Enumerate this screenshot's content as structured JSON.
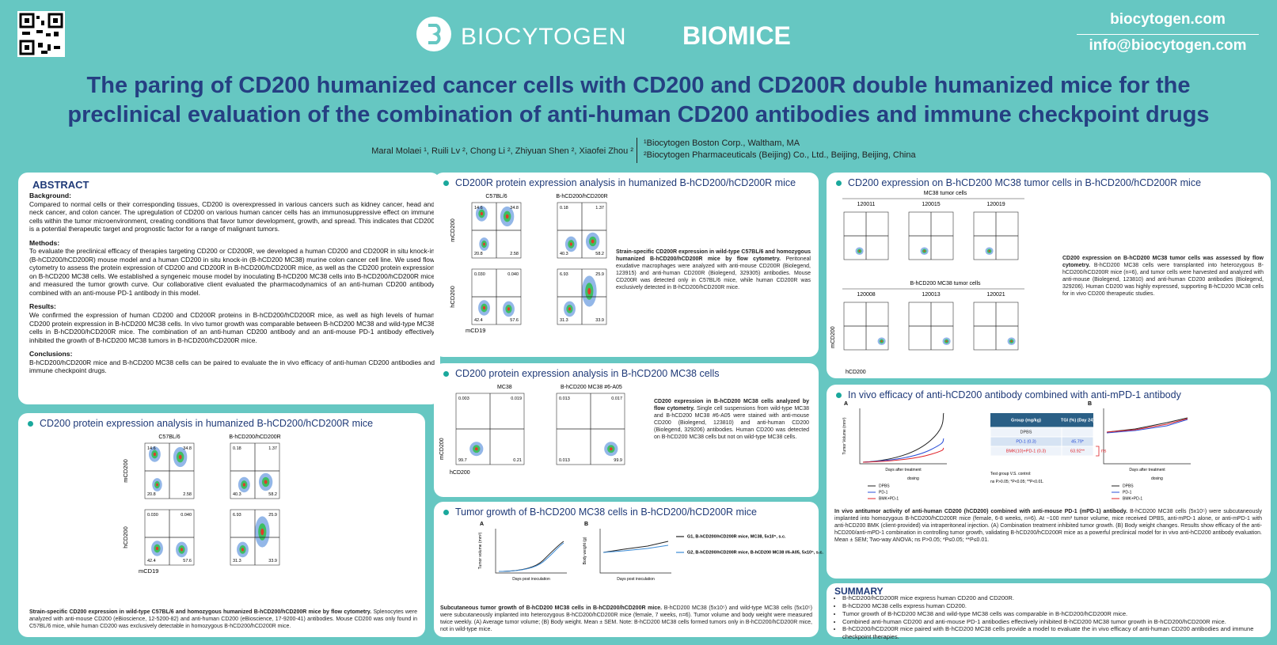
{
  "header": {
    "brand1": "BIOCYTOGEN",
    "brand2": "BIOMICE",
    "website": "biocytogen.com",
    "email": "info@biocytogen.com"
  },
  "title": {
    "line1": "The paring of CD200 humanized cancer cells with CD200 and CD200R double humanized mice for the",
    "line2": "preclinical evaluation of the combination of anti-human CD200 antibodies and immune checkpoint drugs"
  },
  "authors": "Maral Molaei ¹, Ruili Lv ², Chong Li ², Zhiyuan Shen ², Xiaofei Zhou ²",
  "affiliations": [
    "¹Biocytogen Boston Corp., Waltham, MA",
    "²Biocytogen Pharmaceuticals (Beijing) Co., Ltd., Beijing, Beijing, China"
  ],
  "abstract": {
    "heading": "ABSTRACT",
    "sections": [
      {
        "heading": "Background:",
        "text": "Compared to normal cells or their corresponding tissues, CD200 is overexpressed in various cancers such as kidney cancer, head and neck cancer, and colon cancer. The upregulation of CD200 on various human cancer cells has an immunosuppressive effect on immune cells within the tumor microenvironment, creating conditions that favor tumor development, growth, and spread. This indicates that CD200 is a potential therapeutic target and prognostic factor for a range of malignant tumors."
      },
      {
        "heading": "Methods:",
        "text": "To evaluate the preclinical efficacy of therapies targeting CD200 or CD200R, we developed a human CD200 and CD200R in situ knock-in (B-hCD200/hCD200R) mouse model and a human CD200 in situ knock-in (B-hCD200 MC38) murine colon cancer cell line. We used flow cytometry to assess the protein expression of CD200 and CD200R in B-hCD200/hCD200R mice, as well as the CD200 protein expression on B-hCD200 MC38 cells. We established a syngeneic mouse model by inoculating B-hCD200 MC38 cells into B-hCD200/hCD200R mice and measured the tumor growth curve. Our collaborative client evaluated the pharmacodynamics of an anti-human CD200 antibody combined with an anti-mouse PD-1 antibody in this model."
      },
      {
        "heading": "Results:",
        "text": "We confirmed the expression of human CD200 and CD200R proteins in B-hCD200/hCD200R mice, as well as high levels of human CD200 protein expression in B-hCD200 MC38 cells. In vivo tumor growth was comparable between B-hCD200 MC38 and wild-type MC38 cells in B-hCD200/hCD200R mice. The combination of an anti-human CD200 antibody and an anti-mouse PD-1 antibody effectively inhibited the growth of B-hCD200 MC38 tumors in B-hCD200/hCD200R mice."
      },
      {
        "heading": "Conclusions:",
        "text": "B-hCD200/hCD200R mice and B-hCD200 MC38 cells can be paired to evaluate the in vivo efficacy of anti-human CD200 antibodies and immune checkpoint drugs."
      }
    ]
  },
  "cd200_panel": {
    "title": "CD200 protein expression analysis in humanized B-hCD200/hCD200R mice",
    "columns": [
      "C57BL/6",
      "B-hCD200/hCD200R"
    ],
    "rows": [
      "mCD200",
      "hCD200"
    ],
    "xaxis": "mCD19",
    "quads": [
      [
        "14.6",
        "34.8",
        "20.8",
        "2.58"
      ],
      [
        "0.18",
        "1.37",
        "40.3",
        "58.2"
      ],
      [
        "0.030",
        "0.040",
        "42.4",
        "57.6"
      ],
      [
        "6.93",
        "25.9",
        "31.3",
        "33.9"
      ]
    ],
    "caption_bold": "Strain-specific CD200 expression in wild-type C57BL/6 and homozygous humanized B-hCD200/hCD200R mice by flow cytometry.",
    "caption": "Splenocytes were analyzed with anti-mouse CD200 (eBioscience, 12-5200-82) and anti-human CD200 (eBioscience, 17-9200-41) antibodies. Mouse CD200 was only found in C57BL/6 mice, while human CD200 was exclusively detectable in homozygous B-hCD200/hCD200R mice."
  },
  "cd200r_panel": {
    "title": "CD200R protein expression analysis in humanized B-hCD200/hCD200R mice",
    "columns": [
      "C57BL/6",
      "B-hCD200/hCD200R"
    ],
    "rows": [
      "mCD200",
      "hCD200"
    ],
    "xaxis": "mCD19",
    "quads": [
      [
        "14.6",
        "34.8",
        "20.8",
        "2.58"
      ],
      [
        "0.18",
        "1.37",
        "40.3",
        "58.2"
      ],
      [
        "0.030",
        "0.040",
        "42.4",
        "57.6"
      ],
      [
        "6.93",
        "25.9",
        "31.3",
        "33.9"
      ]
    ],
    "caption_bold": "Strain-specific CD200R expression in wild-type C57BL/6 and homozygous humanized B-hCD200/hCD200R mice by flow cytometry.",
    "caption": "Peritoneal exudative macrophages were analyzed with anti-mouse CD200R (Biolegend, 123915) and anti-human CD200R (Biolegend, 329305) antibodies. Mouse CD200R was detected only in C57BL/6 mice, while human CD200R was exclusively detected in B-hCD200/hCD200R mice."
  },
  "mc38_panel": {
    "title": "CD200 protein expression analysis in B-hCD200 MC38 cells",
    "columns": [
      "MC38",
      "B-hCD200 MC38 #6-A05"
    ],
    "yaxis": "mCD200",
    "xaxis": "hCD200",
    "quads": [
      [
        "0.003",
        "0.019",
        "99.7",
        "0.21"
      ],
      [
        "0.013",
        "0.017",
        "0.013",
        "99.9"
      ]
    ],
    "caption_bold": "CD200 expression in B-hCD200 MC38 cells analyzed by flow cytometry.",
    "caption": "Single cell suspensions from wild-type MC38 and B-hCD200 MC38 #6-A05 were stained with anti-mouse CD200 (Biolegend, 123810) and anti-human CD200 (Biolegend, 329206) antibodies. Human CD200 was detected on B-hCD200 MC38 cells but not on wild-type MC38 cells."
  },
  "growth_panel": {
    "title": "Tumor growth of B-hCD200 MC38 cells in B-hCD200/hCD200R mice",
    "panels": [
      "A",
      "B"
    ],
    "yaxes": [
      "Tumor volume (mm³)",
      "Body weight (g)"
    ],
    "xaxis": "Days post inoculation",
    "legend": [
      "G1, B-hCD200/hCD200R mice, MC38, 5x10⁵, s.c.",
      "G2, B-hCD200/hCD200R mice, B-hCD200 MC38 #6-A05, 5x10⁵, s.c."
    ],
    "caption_bold": "Subcutaneous tumor growth of B-hCD200 MC38 cells in B-hCD200/hCD200R mice.",
    "caption": "B-hCD200 MC38 (5x10⁵) and wild-type MC38 cells (5x10⁵) were subcutaneously implanted into heterozygous B-hCD200/hCD200R mice (female, 7 weeks, n=6). Tumor volume and body weight were measured twice weekly. (A) Average tumor volume; (B) Body weight. Mean ± SEM. Note: B-hCD200 MC38 cells formed tumors only in B-hCD200/hCD200R mice, not in wild-type mice."
  },
  "tumor_cells_panel": {
    "title": "CD200 expression on B-hCD200 MC38 tumor cells in B-hCD200/hCD200R mice",
    "groups": [
      {
        "name": "MC38 tumor cells",
        "ids": [
          "120011",
          "120015",
          "120019"
        ]
      },
      {
        "name": "B-hCD200 MC38 tumor cells",
        "ids": [
          "120008",
          "120013",
          "120021"
        ]
      }
    ],
    "yaxis": "mCD200",
    "xaxis": "hCD200",
    "caption_bold": "CD200 expression on B-hCD200 MC38 tumor cells was assessed by flow cytometry.",
    "caption": "B-hCD200 MC38 cells were transplanted into heterozygous B-hCD200/hCD200R mice (n=6), and tumor cells were harvested and analyzed with anti-mouse (Biolegend, 123810) and anti-human CD200 antibodies (Biolegend, 329206). Human CD200 was highly expressed, supporting B-hCD200 MC38 cells for in vivo CD200 therapeutic studies."
  },
  "efficacy_panel": {
    "title": "In vivo efficacy of anti-hCD200 antibody combined with anti-mPD-1 antibody",
    "panels": [
      "A",
      "B"
    ],
    "yaxes": [
      "Tumor Volume (mm³)",
      "Body weight (g)"
    ],
    "xaxis": "Days after treatment",
    "dosing": "dosing",
    "legend": [
      "DPBS",
      "PD-1",
      "BMK+PD-1"
    ],
    "table": {
      "head": [
        "Group (mg/kg)",
        "TGI (%) (Day 24)"
      ],
      "rows": [
        [
          "DPBS",
          ""
        ],
        [
          "PD-1 (0.3)",
          "45.79*"
        ],
        [
          "BMK(10)+PD-1 (0.3)",
          "63.92**"
        ]
      ]
    },
    "ns": "ns",
    "notes": [
      "Test group V.S. control:",
      "ns P>0.05; *P<0.05; **P<0.01."
    ],
    "caption_bold": "In vivo antitumor activity of anti-human CD200 (hCD200) combined with anti-mouse PD-1 (mPD-1) antibody.",
    "caption": "B-hCD200 MC38 cells (5x10⁵) were subcutaneously implanted into homozygous B-hCD200/hCD200R mice (female, 6-8 weeks, n=6). At ~100 mm³ tumor volume, mice received DPBS, anti-mPD-1 alone, or anti-mPD-1 with anti-hCD200 BMK (client-provided) via intraperitoneal injection. (A) Combination treatment inhibited tumor growth. (B) Body weight changes. Results show efficacy of the anti-hCD200/anti-mPD-1 combination in controlling tumor growth, validating B-hCD200/hCD200R mice as a powerful preclinical model for in vivo anti-hCD200 antibody evaluation. Mean ± SEM; Two-way ANOVA; ns P>0.05; *P≤0.05; **P≤0.01."
  },
  "summary": {
    "heading": "SUMMARY",
    "items": [
      "B-hCD200/hCD200R mice express human CD200 and CD200R.",
      "B-hCD200 MC38 cells express human CD200.",
      "Tumor growth of B-hCD200 MC38 and wild-type MC38 cells was comparable in B-hCD200/hCD200R mice.",
      "Combined anti-human CD200 and anti-mouse PD-1 antibodies effectively inhibited B-hCD200 MC38 tumor growth in B-hCD200/hCD200R mice.",
      "B-hCD200/hCD200R mice paired with B-hCD200 MC38 cells provide a model to evaluate the in vivo efficacy of anti-human CD200 antibodies and immune checkpoint therapies."
    ]
  }
}
